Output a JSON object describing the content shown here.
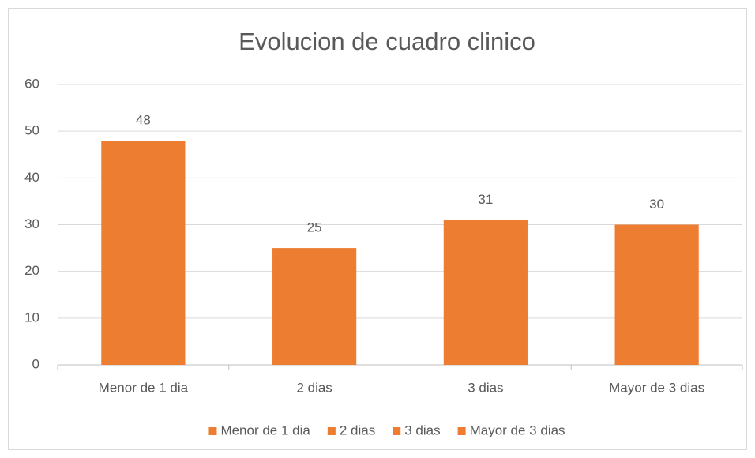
{
  "chart_data": {
    "type": "bar",
    "title": "Evolucion de cuadro clinico",
    "categories": [
      "Menor de 1 dia",
      "2 dias",
      "3 dias",
      "Mayor de 3 dias"
    ],
    "values": [
      48,
      25,
      31,
      30
    ],
    "color": "#ed7d31",
    "ylim": [
      0,
      60
    ],
    "yticks": [
      0,
      10,
      20,
      30,
      40,
      50,
      60
    ],
    "grid": true,
    "legend": "bottom"
  }
}
